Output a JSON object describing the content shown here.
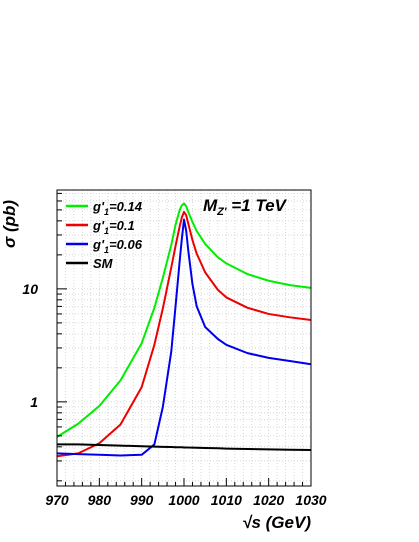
{
  "chart_data": {
    "type": "line",
    "xlabel": "√s (GeV)",
    "ylabel": "σ (pb)",
    "annotation_base": "M",
    "annotation_sub": "Z'",
    "annotation_rest": " =1 TeV",
    "xlim": [
      970,
      1030
    ],
    "ylim": [
      0.18,
      75
    ],
    "yscale": "log",
    "grid": true,
    "legend_position": "top-left",
    "x_ticks": [
      "970",
      "980",
      "990",
      "1000",
      "1010",
      "1020",
      "1030"
    ],
    "y_ticks": [
      {
        "label": "1",
        "value": 1
      },
      {
        "label": "10",
        "value": 10
      }
    ],
    "x": [
      970,
      975,
      980,
      985,
      990,
      993,
      995,
      997,
      998,
      999,
      999.5,
      1000,
      1000.5,
      1001,
      1002,
      1003,
      1005,
      1008,
      1010,
      1015,
      1020,
      1025,
      1030
    ],
    "series": [
      {
        "name_base": "g'",
        "name_sub": "1",
        "name_rest": "=0.14",
        "color": "#00ee00",
        "values": [
          0.49,
          0.64,
          0.92,
          1.55,
          3.3,
          6.8,
          12.5,
          24.5,
          37,
          50,
          55,
          57,
          54,
          48,
          39,
          32.5,
          25,
          19,
          16.8,
          13.5,
          11.8,
          10.8,
          10.2
        ]
      },
      {
        "name_base": "g'",
        "name_sub": "1",
        "name_rest": "=0.1",
        "color": "#ee0000",
        "values": [
          0.33,
          0.35,
          0.43,
          0.63,
          1.35,
          3.2,
          6.7,
          15.5,
          24,
          36,
          43,
          48,
          45,
          38,
          27,
          20.5,
          14,
          9.8,
          8.4,
          6.8,
          6.0,
          5.6,
          5.3
        ]
      },
      {
        "name_base": "g'",
        "name_sub": "1",
        "name_rest": "=0.06",
        "color": "#0000ee",
        "values": [
          0.35,
          0.345,
          0.34,
          0.335,
          0.34,
          0.42,
          0.9,
          2.8,
          7,
          18,
          28,
          41,
          33,
          22,
          11,
          7,
          4.6,
          3.6,
          3.2,
          2.7,
          2.45,
          2.3,
          2.15
        ]
      },
      {
        "name": "SM",
        "color": "#000000",
        "values": [
          0.42,
          0.42,
          0.415,
          0.41,
          0.405,
          0.402,
          0.4,
          0.398,
          0.397,
          0.396,
          0.396,
          0.395,
          0.395,
          0.394,
          0.393,
          0.392,
          0.39,
          0.388,
          0.386,
          0.383,
          0.38,
          0.377,
          0.375
        ]
      }
    ]
  }
}
